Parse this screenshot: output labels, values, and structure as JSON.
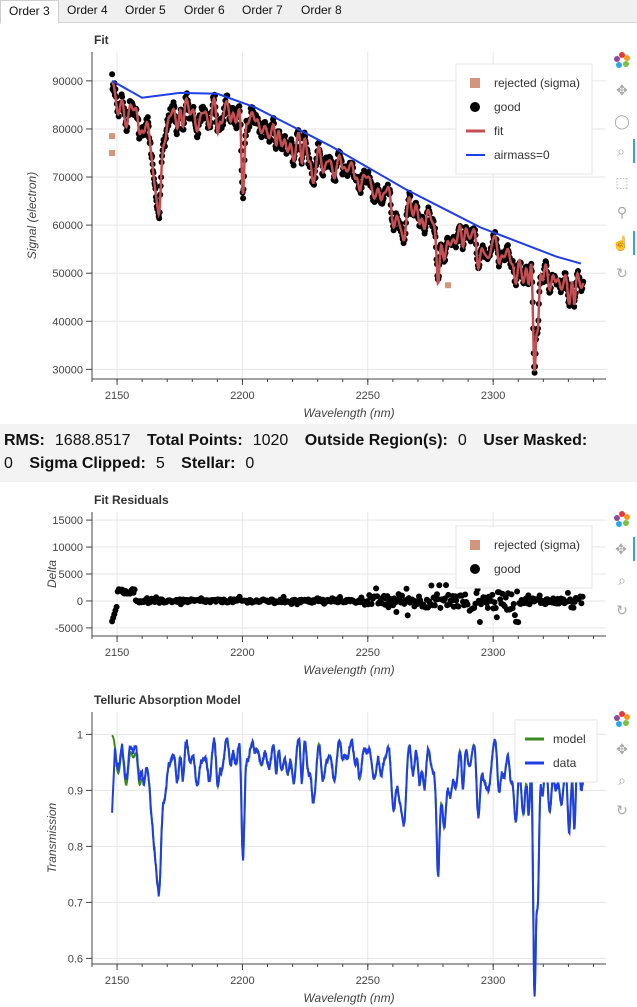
{
  "tabs": [
    "Order 3",
    "Order 4",
    "Order 5",
    "Order 6",
    "Order 7",
    "Order 8"
  ],
  "active_tab": 0,
  "stats": {
    "rms_label": "RMS:",
    "rms": "1688.8517",
    "total_label": "Total Points:",
    "total": "1020",
    "outside_label": "Outside Region(s):",
    "outside": "0",
    "masked_label": "User Masked:",
    "masked": "0",
    "sigma_label": "Sigma Clipped:",
    "sigma": "5",
    "stellar_label": "Stellar:",
    "stellar": "0"
  },
  "toolbar_icons": [
    "bokeh-logo-icon",
    "pan-icon",
    "lasso-icon",
    "box-zoom-icon",
    "box-select-icon",
    "wheel-zoom-icon",
    "tap-icon",
    "reset-icon"
  ],
  "colors": {
    "fit": "#c44e52",
    "good": "#000000",
    "rejected": "#d1967d",
    "airmass": "#1f3ee8",
    "model": "#3a8a1e",
    "data": "#1f3ee8"
  },
  "chart_data": [
    {
      "type": "scatter",
      "title": "Fit",
      "xlabel": "Wavelength (nm)",
      "ylabel": "Signal (electron)",
      "xlim": [
        2140,
        2345
      ],
      "ylim": [
        28000,
        96000
      ],
      "xticks": [
        2150,
        2200,
        2250,
        2300
      ],
      "yticks": [
        30000,
        40000,
        50000,
        60000,
        70000,
        80000,
        90000
      ],
      "grid": true,
      "legend_position": "top-right",
      "legend": [
        "rejected (sigma)",
        "good",
        "fit",
        "airmass=0"
      ],
      "series": [
        {
          "name": "airmass=0",
          "kind": "line",
          "x": [
            2148,
            2160,
            2175,
            2190,
            2205,
            2220,
            2235,
            2250,
            2265,
            2280,
            2295,
            2310,
            2325,
            2335
          ],
          "y": [
            90000,
            86500,
            87500,
            87300,
            84500,
            80500,
            76500,
            72000,
            67500,
            63500,
            59500,
            56500,
            53500,
            52000
          ]
        },
        {
          "name": "rejected (sigma)",
          "kind": "marker",
          "x": [
            2148,
            2148,
            2282
          ],
          "y": [
            78500,
            75000,
            47500
          ]
        }
      ]
    },
    {
      "type": "scatter",
      "title": "Fit Residuals",
      "xlabel": "Wavelength (nm)",
      "ylabel": "Delta",
      "xlim": [
        2140,
        2345
      ],
      "ylim": [
        -6500,
        16500
      ],
      "xticks": [
        2150,
        2200,
        2250,
        2300
      ],
      "yticks": [
        -5000,
        0,
        5000,
        10000,
        15000
      ],
      "grid": true,
      "legend_position": "top-right",
      "legend": [
        "rejected (sigma)",
        "good"
      ]
    },
    {
      "type": "line",
      "title": "Telluric Absorption Model",
      "xlabel": "Wavelength (nm)",
      "ylabel": "Transmission",
      "xlim": [
        2140,
        2345
      ],
      "ylim": [
        0.59,
        1.04
      ],
      "xticks": [
        2150,
        2200,
        2250,
        2300
      ],
      "yticks": [
        0.6,
        0.7,
        0.8,
        0.9,
        1
      ],
      "grid": true,
      "legend_position": "top-right",
      "legend": [
        "model",
        "data"
      ]
    }
  ]
}
